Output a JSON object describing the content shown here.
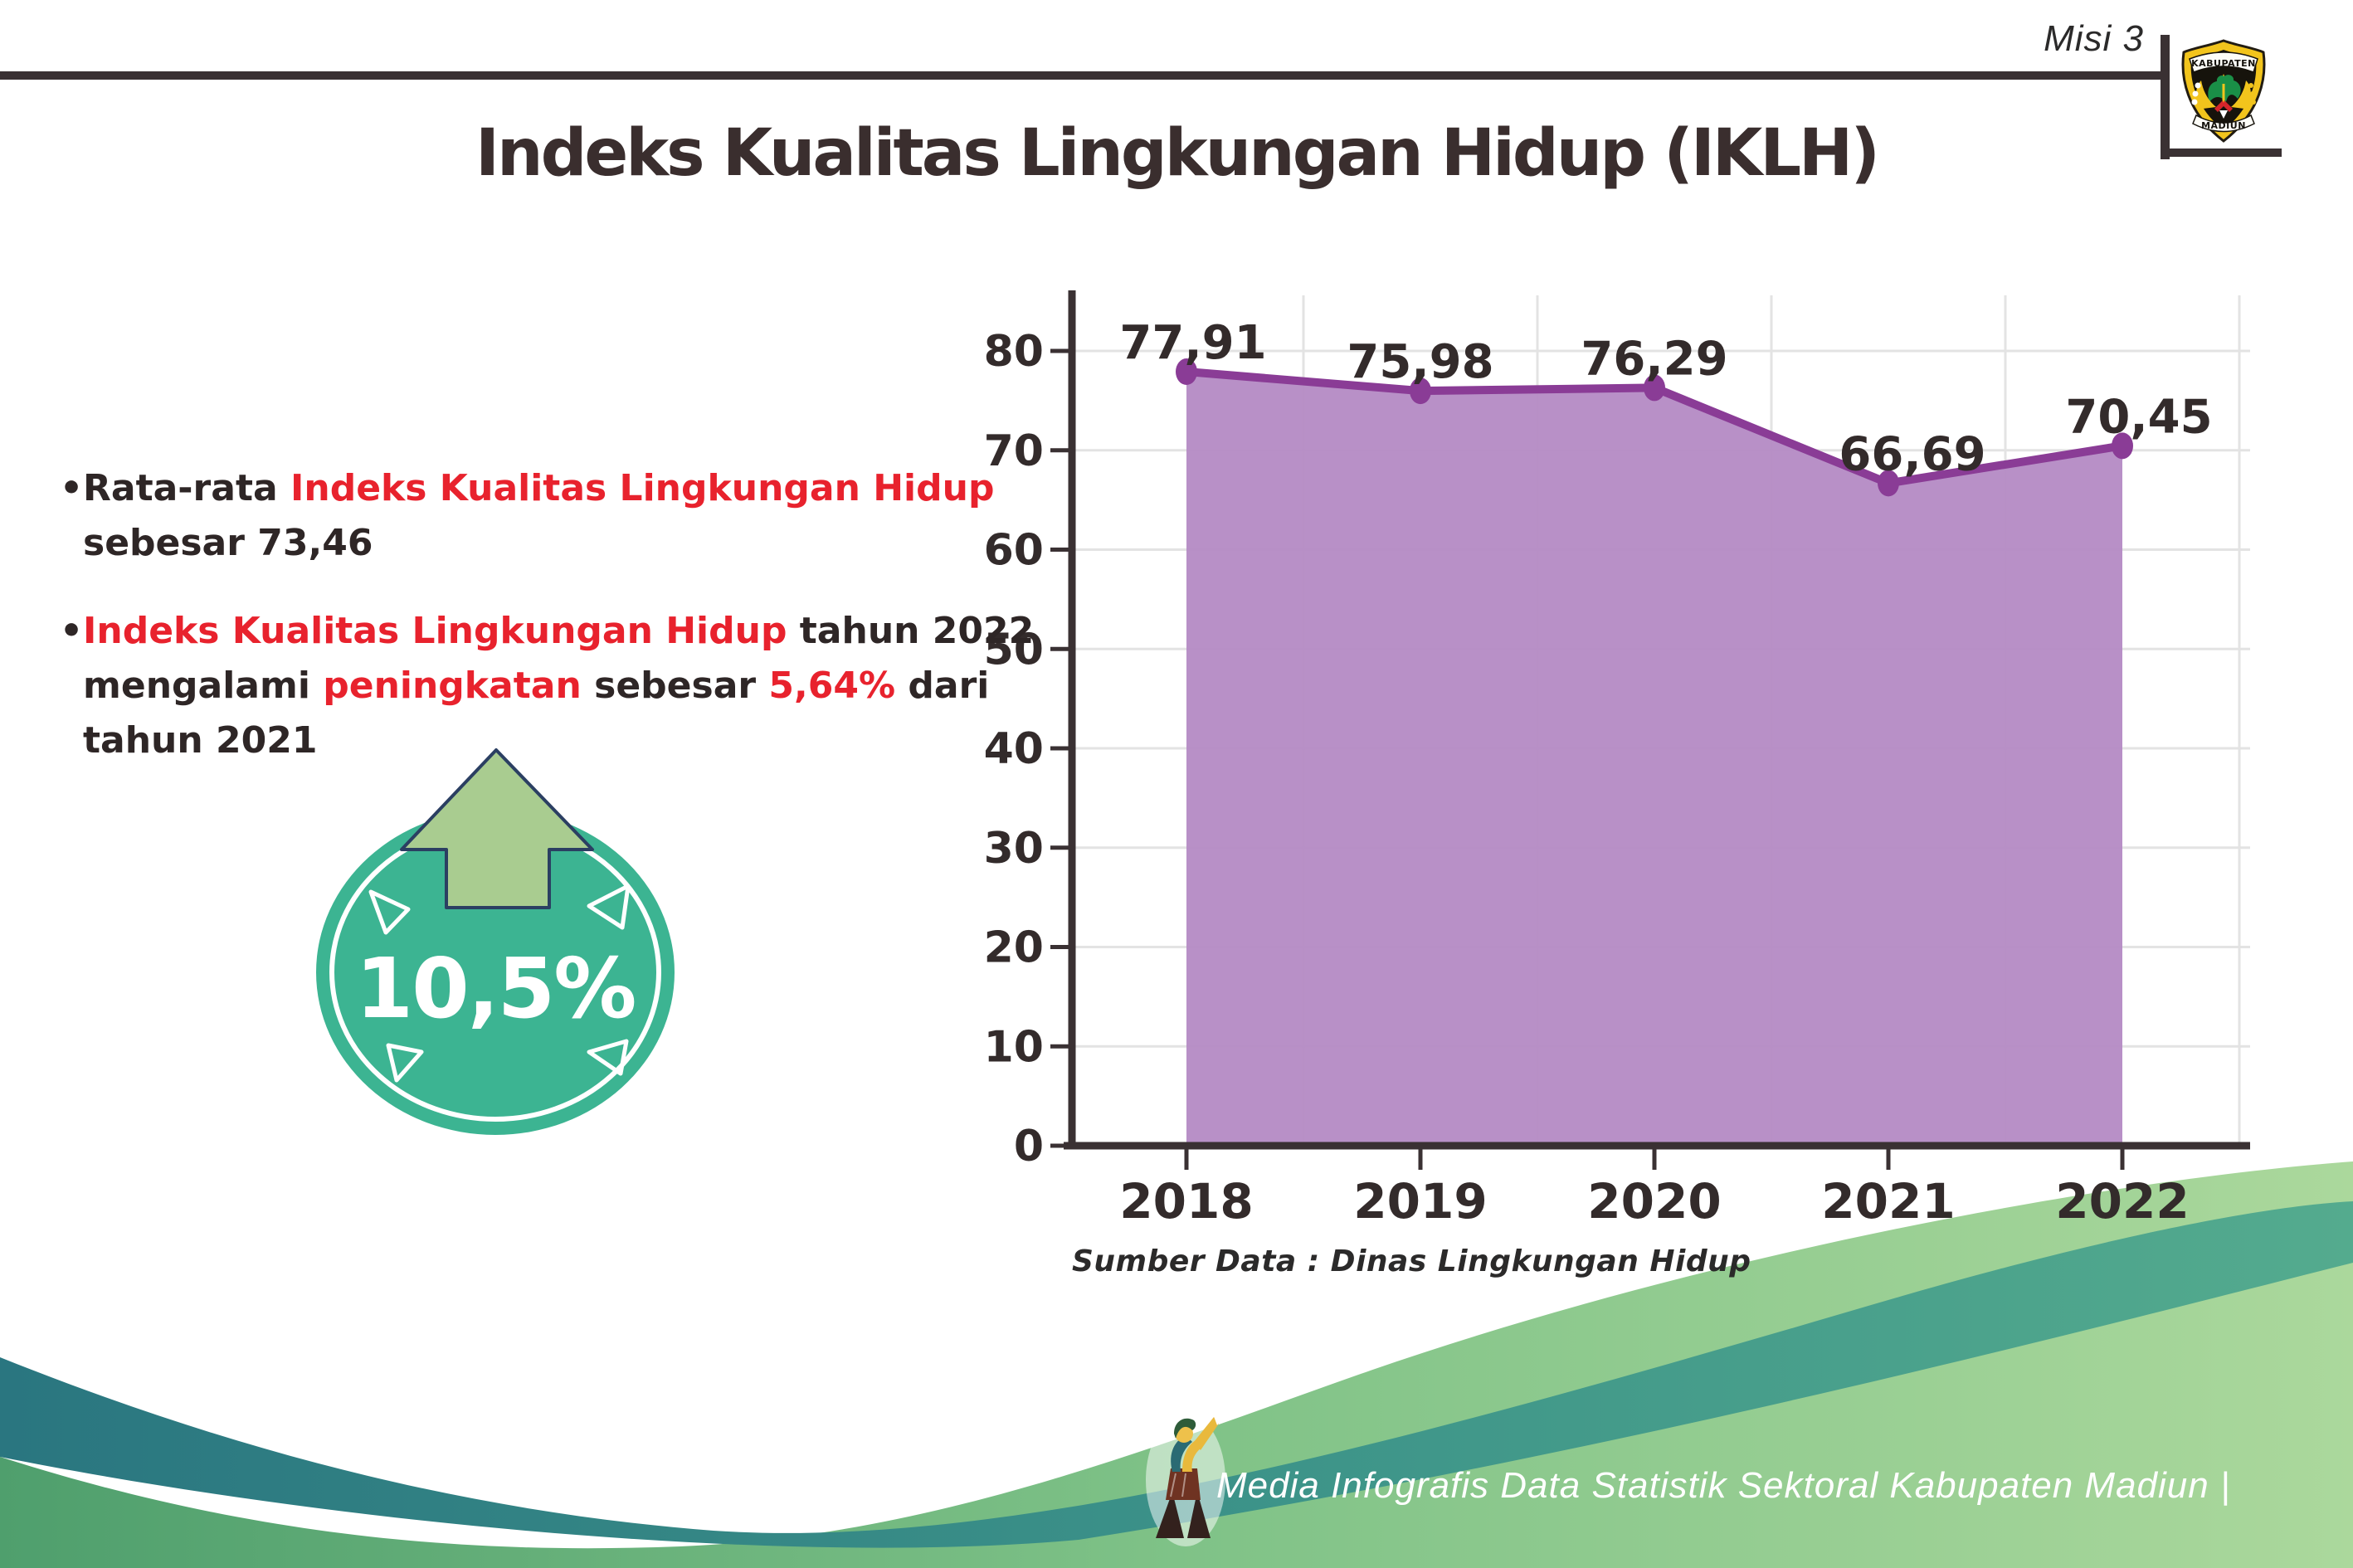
{
  "header": {
    "misi_label": "Misi 3",
    "logo": {
      "top_text": "KABUPATEN",
      "bottom_text": "MADIUN"
    }
  },
  "title": "Indeks Kualitas Lingkungan Hidup (IKLH)",
  "bullets": [
    {
      "lines": [
        [
          {
            "t": "Rata-rata ",
            "c": "dark"
          },
          {
            "t": "Indeks Kualitas Lingkungan Hidup",
            "c": "red"
          }
        ],
        [
          {
            "t": "sebesar 73,46",
            "c": "dark"
          }
        ]
      ]
    },
    {
      "lines": [
        [
          {
            "t": "Indeks Kualitas Lingkungan Hidup",
            "c": "red"
          },
          {
            "t": " tahun 2022",
            "c": "dark"
          }
        ],
        [
          {
            "t": "mengalami ",
            "c": "dark"
          },
          {
            "t": "peningkatan",
            "c": "red"
          },
          {
            "t": " sebesar ",
            "c": "dark"
          },
          {
            "t": "5,64%",
            "c": "red"
          },
          {
            "t": " dari",
            "c": "dark"
          }
        ],
        [
          {
            "t": "tahun 2021",
            "c": "dark"
          }
        ]
      ]
    }
  ],
  "badge": {
    "value": "10,5%"
  },
  "chart_data": {
    "type": "area",
    "title": "",
    "categories": [
      "2018",
      "2019",
      "2020",
      "2021",
      "2022"
    ],
    "values": [
      77.91,
      75.98,
      76.29,
      66.69,
      70.45
    ],
    "value_labels": [
      "77,91",
      "75,98",
      "76,29",
      "66,69",
      "70,45"
    ],
    "xlabel": "",
    "ylabel": "",
    "ylim": [
      0,
      80
    ],
    "ytick_step": 10,
    "grid": true,
    "legend": "none",
    "source": "Sumber Data : Dinas Lingkungan Hidup"
  },
  "footer": {
    "credit": "Media Infografis Data Statistik Sektoral Kabupaten Madiun |"
  },
  "colors": {
    "accent_red": "#e8222d",
    "text_dark": "#2e2626",
    "axis_dark": "#3a3133",
    "line_purple": "#8a3c96",
    "area_purple": "#b48ac4",
    "grid_gray": "#e3e3e3",
    "badge_teal": "#3cb492",
    "arrow_green": "#a9cc90",
    "arrow_outline_navy": "#2b3f62",
    "wave_teal_left": "#2a7680",
    "wave_teal_right": "#54ab8e",
    "wave_green_left": "#4f9f6d",
    "wave_green_right": "#abd89c"
  }
}
